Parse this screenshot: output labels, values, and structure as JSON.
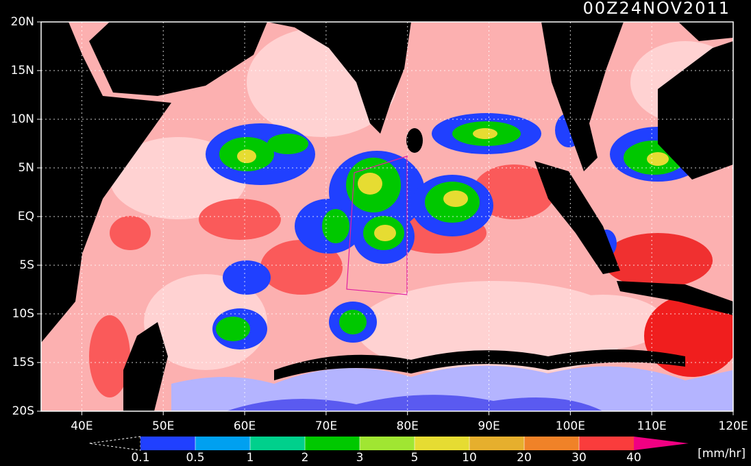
{
  "map": {
    "title": "00Z24NOV2011",
    "xlim": [
      35,
      120
    ],
    "ylim": [
      -20,
      20
    ],
    "yticks": [
      {
        "value": 20,
        "label": "20N"
      },
      {
        "value": 15,
        "label": "15N"
      },
      {
        "value": 10,
        "label": "10N"
      },
      {
        "value": 5,
        "label": "5N"
      },
      {
        "value": 0,
        "label": "EQ"
      },
      {
        "value": -5,
        "label": "5S"
      },
      {
        "value": -10,
        "label": "10S"
      },
      {
        "value": -15,
        "label": "15S"
      },
      {
        "value": -20,
        "label": "20S"
      }
    ],
    "xticks": [
      {
        "value": 40,
        "label": "40E"
      },
      {
        "value": 50,
        "label": "50E"
      },
      {
        "value": 60,
        "label": "60E"
      },
      {
        "value": 70,
        "label": "70E"
      },
      {
        "value": 80,
        "label": "80E"
      },
      {
        "value": 90,
        "label": "90E"
      },
      {
        "value": 100,
        "label": "100E"
      },
      {
        "value": 110,
        "label": "110E"
      },
      {
        "value": 120,
        "label": "120E"
      }
    ],
    "grid": true,
    "colorbar": {
      "bounds": [
        0.1,
        0.5,
        1,
        2,
        3,
        5,
        10,
        20,
        30,
        40
      ],
      "colors": [
        "#2040ff",
        "#00a0f0",
        "#00d08c",
        "#00c800",
        "#a0e632",
        "#e6dc32",
        "#e6af2d",
        "#f08228",
        "#fa3c3c",
        "#f00082"
      ],
      "unit": "[mm/hr]"
    }
  }
}
